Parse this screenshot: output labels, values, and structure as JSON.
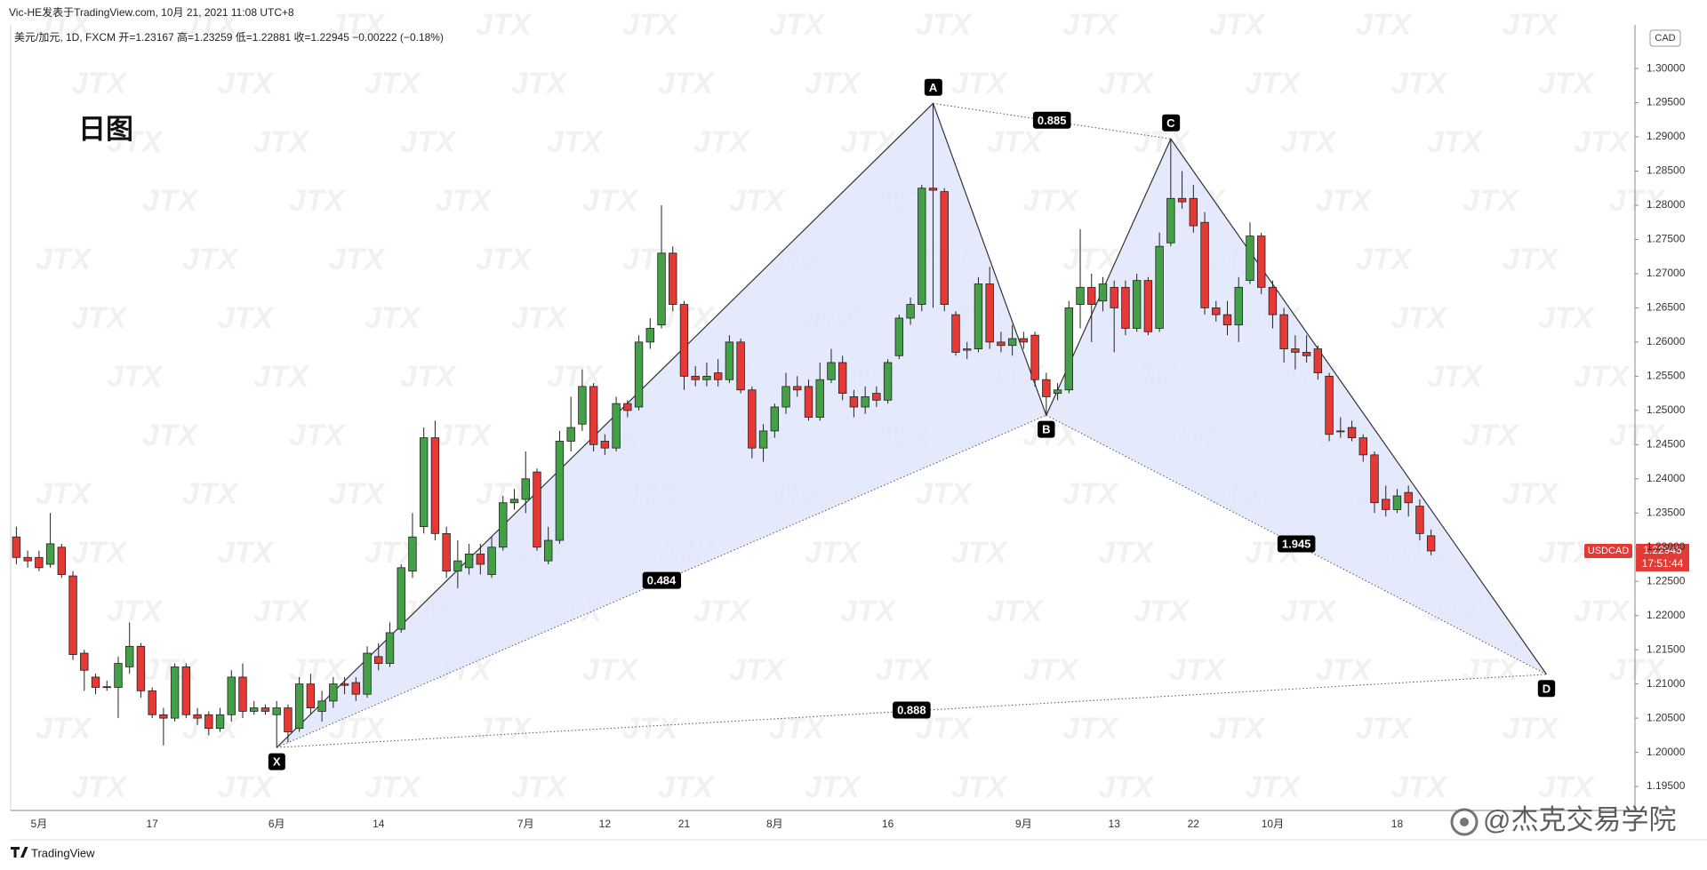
{
  "chart_data": {
    "type": "candlestick",
    "author_line": "Vic-HE发表于TradingView.com, 10月 21, 2021 11:08 UTC+8",
    "symbol_line": "美元/加元, 1D, FXCM 开=1.23167 高=1.23259 低=1.22881 收=1.22945 −0.00222 (−0.18%)",
    "annotation": "日图",
    "currency": "CAD",
    "watermark": "JTX",
    "brand": "TradingView",
    "credit": "@杰克交易学院",
    "countdown": "17:51:44",
    "last_price": 1.22945,
    "ylim": [
      1.1915,
      1.3056
    ],
    "yticks": [
      {
        "value": 1.195,
        "label": "1.19500"
      },
      {
        "value": 1.2,
        "label": "1.20000"
      },
      {
        "value": 1.205,
        "label": "1.20500"
      },
      {
        "value": 1.21,
        "label": "1.21000"
      },
      {
        "value": 1.215,
        "label": "1.21500"
      },
      {
        "value": 1.22,
        "label": "1.22000"
      },
      {
        "value": 1.225,
        "label": "1.22500"
      },
      {
        "value": 1.23,
        "label": "1.23000"
      },
      {
        "value": 1.235,
        "label": "1.23500"
      },
      {
        "value": 1.24,
        "label": "1.24000"
      },
      {
        "value": 1.245,
        "label": "1.24500"
      },
      {
        "value": 1.25,
        "label": "1.25000"
      },
      {
        "value": 1.255,
        "label": "1.25500"
      },
      {
        "value": 1.26,
        "label": "1.26000"
      },
      {
        "value": 1.265,
        "label": "1.26500"
      },
      {
        "value": 1.27,
        "label": "1.27000"
      },
      {
        "value": 1.275,
        "label": "1.27500"
      },
      {
        "value": 1.28,
        "label": "1.28000"
      },
      {
        "value": 1.285,
        "label": "1.28500"
      },
      {
        "value": 1.29,
        "label": "1.29000"
      },
      {
        "value": 1.295,
        "label": "1.29500"
      },
      {
        "value": 1.3,
        "label": "1.30000"
      }
    ],
    "categories": [
      null,
      null,
      "5月",
      null,
      null,
      null,
      null,
      null,
      null,
      null,
      null,
      null,
      "17",
      null,
      null,
      null,
      null,
      null,
      null,
      null,
      null,
      null,
      null,
      "6月",
      null,
      null,
      null,
      null,
      null,
      null,
      null,
      null,
      "14",
      null,
      null,
      null,
      null,
      null,
      null,
      null,
      null,
      null,
      null,
      null,
      null,
      "7月",
      null,
      null,
      null,
      null,
      null,
      null,
      "12",
      null,
      null,
      null,
      null,
      null,
      null,
      "21",
      null,
      null,
      null,
      null,
      null,
      null,
      null,
      "8月",
      null,
      null,
      null,
      null,
      null,
      null,
      null,
      null,
      null,
      "16",
      null,
      null,
      null,
      null,
      null,
      null,
      null,
      null,
      null,
      null,
      null,
      "9月",
      null,
      null,
      null,
      null,
      null,
      null,
      null,
      "13",
      null,
      null,
      null,
      null,
      null,
      null,
      "22",
      null,
      null,
      null,
      null,
      null,
      null,
      "10月",
      null,
      null,
      null,
      null,
      null,
      null,
      null,
      null,
      null,
      null,
      "18",
      null,
      null,
      null
    ],
    "series": [
      {
        "name": "USDCAD",
        "up_color": "#43a047",
        "down_color": "#e53935",
        "open": [
          1.2315,
          1.2285,
          1.2285,
          1.2275,
          1.23,
          1.2258,
          1.2145,
          1.211,
          1.2095,
          1.2095,
          1.2125,
          1.2155,
          1.209,
          1.2055,
          1.205,
          1.2125,
          1.2055,
          1.2055,
          1.2035,
          1.2055,
          1.211,
          1.206,
          1.2065,
          1.2055,
          1.2065,
          1.2035,
          1.21,
          1.206,
          1.2075,
          1.21,
          1.2102,
          1.2085,
          1.214,
          1.213,
          1.218,
          1.2265,
          1.233,
          1.246,
          1.232,
          1.2265,
          1.227,
          1.229,
          1.226,
          1.23,
          1.2365,
          1.237,
          1.241,
          1.228,
          1.231,
          1.2455,
          1.248,
          1.2535,
          1.2455,
          1.2445,
          1.251,
          1.2505,
          1.26,
          1.2625,
          1.273,
          1.2655,
          1.255,
          1.2545,
          1.2555,
          1.2545,
          1.26,
          1.253,
          1.2445,
          1.247,
          1.2505,
          1.2535,
          1.2535,
          1.249,
          1.2545,
          1.257,
          1.252,
          1.2505,
          1.2525,
          1.2515,
          1.258,
          1.2635,
          1.2655,
          1.2825,
          1.282,
          1.264,
          1.2588,
          1.259,
          1.2685,
          1.26,
          1.2595,
          1.2605,
          1.261,
          1.2545,
          1.2525,
          1.253,
          1.2655,
          1.268,
          1.266,
          1.268,
          1.268,
          1.262,
          1.269,
          1.262,
          1.2745,
          1.281,
          1.281,
          1.2775,
          1.265,
          1.264,
          1.2625,
          1.269,
          1.2755,
          1.268,
          1.264,
          1.259,
          1.2585,
          1.259,
          1.255,
          1.247,
          1.2475,
          1.246,
          1.2435,
          1.237,
          1.2355,
          1.238,
          1.236,
          1.23167
        ],
        "high": [
          1.233,
          1.2295,
          1.2295,
          1.235,
          1.2305,
          1.2265,
          1.215,
          1.2115,
          1.2105,
          1.214,
          1.219,
          1.216,
          1.2095,
          1.2065,
          1.213,
          1.213,
          1.2065,
          1.206,
          1.2065,
          1.212,
          1.213,
          1.2075,
          1.207,
          1.2075,
          1.207,
          1.211,
          1.2115,
          1.209,
          1.211,
          1.211,
          1.211,
          1.2155,
          1.216,
          1.219,
          1.2275,
          1.235,
          1.2475,
          1.2485,
          1.233,
          1.231,
          1.2305,
          1.2305,
          1.2315,
          1.2375,
          1.2385,
          1.244,
          1.2415,
          1.233,
          1.247,
          1.252,
          1.256,
          1.254,
          1.2465,
          1.252,
          1.2515,
          1.261,
          1.2635,
          1.28,
          1.274,
          1.266,
          1.2565,
          1.257,
          1.2575,
          1.261,
          1.2605,
          1.2535,
          1.248,
          1.251,
          1.2555,
          1.255,
          1.2545,
          1.257,
          1.259,
          1.258,
          1.253,
          1.2535,
          1.2535,
          1.2575,
          1.264,
          1.2665,
          1.283,
          1.2949,
          1.2825,
          1.2645,
          1.26,
          1.2695,
          1.271,
          1.2615,
          1.2625,
          1.2615,
          1.2615,
          1.2555,
          1.254,
          1.266,
          1.2765,
          1.27,
          1.2695,
          1.269,
          1.269,
          1.27,
          1.2695,
          1.276,
          1.2897,
          1.285,
          1.283,
          1.279,
          1.266,
          1.266,
          1.2695,
          1.2775,
          1.276,
          1.269,
          1.265,
          1.261,
          1.261,
          1.2595,
          1.2555,
          1.249,
          1.2485,
          1.2465,
          1.244,
          1.239,
          1.2385,
          1.239,
          1.237,
          1.23259
        ],
        "low": [
          1.2275,
          1.227,
          1.2265,
          1.227,
          1.2255,
          1.2135,
          1.209,
          1.2085,
          1.209,
          1.205,
          1.2115,
          1.208,
          1.205,
          1.201,
          1.2045,
          1.205,
          1.204,
          1.2025,
          1.203,
          1.2045,
          1.205,
          1.2055,
          1.2055,
          1.2007,
          1.2015,
          1.203,
          1.2055,
          1.2045,
          1.2065,
          1.2085,
          1.2075,
          1.208,
          1.212,
          1.2125,
          1.2175,
          1.2255,
          1.232,
          1.231,
          1.2255,
          1.224,
          1.226,
          1.226,
          1.2255,
          1.2295,
          1.2355,
          1.235,
          1.2295,
          1.2275,
          1.2305,
          1.244,
          1.247,
          1.244,
          1.2435,
          1.244,
          1.249,
          1.25,
          1.259,
          1.262,
          1.2645,
          1.253,
          1.2535,
          1.2535,
          1.2535,
          1.254,
          1.2525,
          1.243,
          1.2425,
          1.246,
          1.2495,
          1.252,
          1.2485,
          1.2485,
          1.254,
          1.2515,
          1.249,
          1.2495,
          1.2505,
          1.251,
          1.2575,
          1.2625,
          1.2645,
          1.265,
          1.2645,
          1.258,
          1.2575,
          1.2585,
          1.259,
          1.2585,
          1.258,
          1.259,
          1.2535,
          1.2493,
          1.2515,
          1.2525,
          1.262,
          1.26,
          1.2645,
          1.2585,
          1.261,
          1.2615,
          1.261,
          1.2615,
          1.274,
          1.2795,
          1.276,
          1.264,
          1.263,
          1.261,
          1.26,
          1.2685,
          1.267,
          1.262,
          1.257,
          1.256,
          1.257,
          1.2545,
          1.2455,
          1.246,
          1.2455,
          1.2425,
          1.235,
          1.2345,
          1.235,
          1.2345,
          1.231,
          1.22881
        ],
        "close": [
          1.2285,
          1.228,
          1.227,
          1.2305,
          1.226,
          1.2143,
          1.212,
          1.2095,
          1.2096,
          1.213,
          1.2155,
          1.209,
          1.2055,
          1.205,
          1.2125,
          1.2055,
          1.205,
          1.2035,
          1.2055,
          1.211,
          1.206,
          1.2065,
          1.206,
          1.2065,
          1.203,
          1.21,
          1.2065,
          1.2075,
          1.21,
          1.2098,
          1.2085,
          1.2145,
          1.213,
          1.2175,
          1.227,
          1.2315,
          1.246,
          1.232,
          1.2265,
          1.228,
          1.229,
          1.2275,
          1.23,
          1.2365,
          1.237,
          1.24,
          1.23,
          1.231,
          1.2455,
          1.2475,
          1.2535,
          1.245,
          1.2445,
          1.251,
          1.25,
          1.26,
          1.262,
          1.273,
          1.2655,
          1.255,
          1.2545,
          1.255,
          1.2545,
          1.26,
          1.253,
          1.2445,
          1.247,
          1.2505,
          1.2535,
          1.253,
          1.249,
          1.2545,
          1.257,
          1.2525,
          1.2505,
          1.252,
          1.2515,
          1.257,
          1.2635,
          1.2655,
          1.2825,
          1.2822,
          1.2655,
          1.2585,
          1.259,
          1.2685,
          1.26,
          1.2595,
          1.2605,
          1.26,
          1.2545,
          1.252,
          1.253,
          1.265,
          1.268,
          1.2655,
          1.2685,
          1.265,
          1.262,
          1.269,
          1.2615,
          1.274,
          1.281,
          1.2805,
          1.277,
          1.265,
          1.264,
          1.2625,
          1.268,
          1.2755,
          1.268,
          1.264,
          1.259,
          1.2585,
          1.258,
          1.2555,
          1.2465,
          1.247,
          1.246,
          1.2435,
          1.2365,
          1.2355,
          1.2375,
          1.2365,
          1.232,
          1.22945
        ]
      }
    ],
    "pattern": {
      "color": "#dfe5fb",
      "points": [
        {
          "label": "X",
          "x": 23,
          "price": 1.2007
        },
        {
          "label": "A",
          "x": 81,
          "price": 1.2949
        },
        {
          "label": "B",
          "x": 91,
          "price": 1.2493
        },
        {
          "label": "C",
          "x": 102,
          "price": 1.2897
        },
        {
          "label": "D",
          "x": 135.2,
          "price": 1.2114
        }
      ],
      "ratios": [
        0.484,
        0.885,
        1.945,
        0.888
      ]
    }
  }
}
